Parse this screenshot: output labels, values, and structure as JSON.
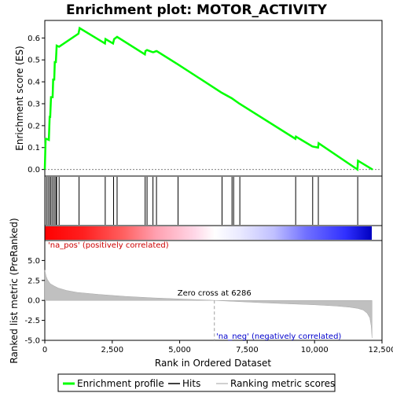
{
  "chart_data": {
    "type": "line",
    "title": "Enrichment plot: MOTOR_ACTIVITY",
    "xlabel": "Rank in Ordered Dataset",
    "xlim": [
      0,
      12500
    ],
    "x_ticks": [
      0,
      2500,
      5000,
      7500,
      10000,
      12500
    ],
    "x_tick_labels": [
      "0",
      "2,500",
      "5,000",
      "7,500",
      "10,000",
      "12,500"
    ],
    "es_panel": {
      "ylabel": "Enrichment score (ES)",
      "ylim": [
        -0.03,
        0.68
      ],
      "y_ticks": [
        0.0,
        0.1,
        0.2,
        0.3,
        0.4,
        0.5,
        0.6
      ],
      "y_tick_labels": [
        "0.0",
        "0.1",
        "0.2",
        "0.3",
        "0.4",
        "0.5",
        "0.6"
      ],
      "series_color": "#00ff00",
      "x": [
        0,
        30,
        60,
        150,
        180,
        200,
        230,
        290,
        310,
        350,
        370,
        410,
        440,
        530,
        1250,
        1290,
        2230,
        2250,
        2530,
        2570,
        2680,
        3710,
        3730,
        3790,
        4000,
        4030,
        4130,
        4150,
        4930,
        6560,
        6930,
        7220,
        9290,
        9310,
        9920,
        10130,
        10150,
        11590,
        11610,
        12150
      ],
      "y": [
        0.0,
        0.14,
        0.14,
        0.135,
        0.24,
        0.24,
        0.33,
        0.33,
        0.41,
        0.41,
        0.49,
        0.49,
        0.565,
        0.56,
        0.62,
        0.645,
        0.575,
        0.595,
        0.575,
        0.595,
        0.605,
        0.525,
        0.54,
        0.545,
        0.535,
        0.535,
        0.54,
        0.54,
        0.48,
        0.35,
        0.325,
        0.3,
        0.14,
        0.15,
        0.105,
        0.1,
        0.12,
        0.0,
        0.04,
        0.0
      ]
    },
    "hits": [
      60,
      120,
      180,
      230,
      290,
      350,
      410,
      440,
      530,
      1270,
      2240,
      2550,
      2680,
      3720,
      3790,
      4010,
      4140,
      4940,
      6570,
      6940,
      7000,
      7230,
      9300,
      9930,
      10140,
      11600
    ],
    "heatmap_colors": {
      "positive": "#ff0000",
      "neutral": "#ffffff",
      "negative": "#0000ff"
    },
    "metric_panel": {
      "ylabel": "Ranked list metric (PreRanked)",
      "ylim": [
        -5,
        7.5
      ],
      "y_ticks": [
        -5.0,
        -2.5,
        0.0,
        2.5,
        5.0
      ],
      "y_tick_labels": [
        "-5.0",
        "-2.5",
        "0.0",
        "2.5",
        "5.0"
      ],
      "fill_color": "#c0c0c0",
      "x": [
        0,
        50,
        100,
        200,
        350,
        500,
        800,
        1200,
        2000,
        3000,
        4000,
        5000,
        6000,
        6286,
        7000,
        8000,
        9000,
        10000,
        10800,
        11300,
        11600,
        11800,
        11950,
        12050,
        12100,
        12130
      ],
      "y": [
        3.8,
        3.0,
        2.6,
        2.1,
        1.8,
        1.55,
        1.25,
        1.0,
        0.75,
        0.5,
        0.32,
        0.18,
        0.05,
        0.0,
        -0.12,
        -0.28,
        -0.42,
        -0.55,
        -0.7,
        -0.85,
        -1.0,
        -1.2,
        -1.6,
        -2.2,
        -3.2,
        -4.7
      ],
      "zero_cross": 6286,
      "zero_cross_label": "Zero cross at 6286",
      "pos_label": "'na_pos' (positively correlated)",
      "neg_label": "'na_neg' (negatively correlated)"
    },
    "legend": [
      {
        "label": "Enrichment profile",
        "color": "#00ff00"
      },
      {
        "label": "Hits",
        "color": "#000000"
      },
      {
        "label": "Ranking metric scores",
        "color": "#c0c0c0"
      }
    ]
  }
}
